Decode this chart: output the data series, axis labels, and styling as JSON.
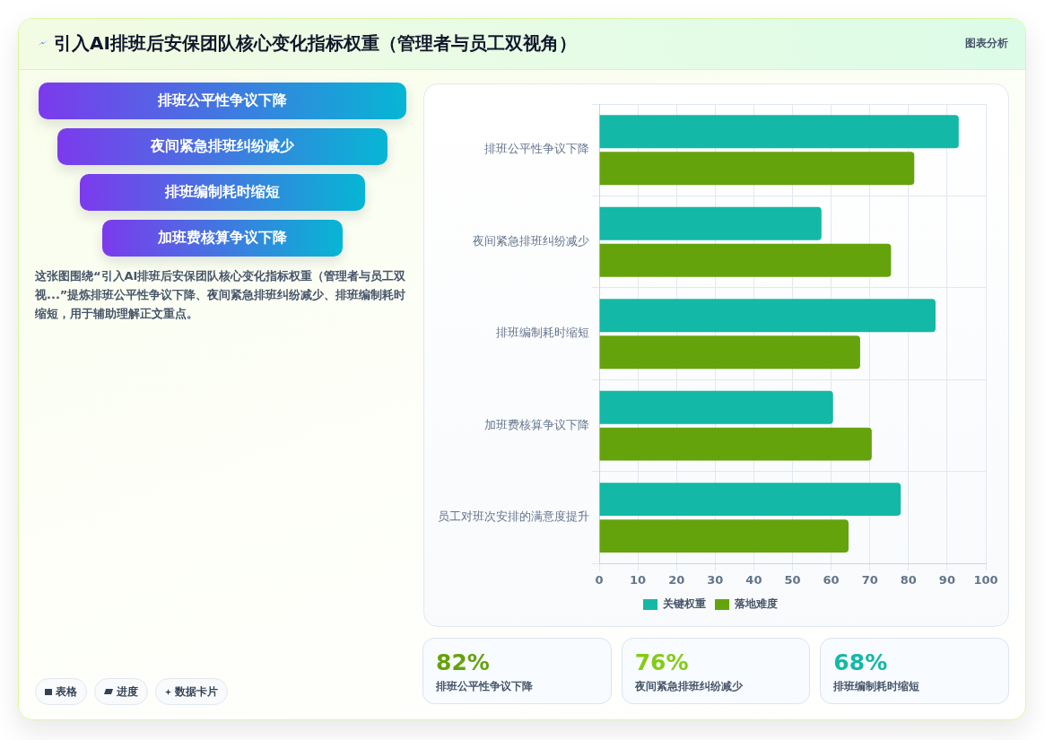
{
  "chart_data": [
    {
      "type": "other",
      "title": "引入AI排班后安保团队核心变化指标权重（管理者与员工双视角）",
      "categories": [
        "排班公平性争议下降",
        "夜间紧急排班纠纷减少",
        "排班编制耗时缩短",
        "加班费核算争议下降"
      ],
      "annotations": [
        "图表分析",
        "这张图围绕“引入AI排班后安保团队核心变化指标权重（管理者与员工双视...”提炼排班公平性争议下降、夜间紧急排班纠纷减少、排班编制耗时缩短，用于辅助理解正文重点。",
        "表格",
        "进度",
        "数据卡片"
      ]
    },
    {
      "type": "bar",
      "orientation": "horizontal",
      "categories": [
        "排班公平性争议下降",
        "夜间紧急排班纠纷减少",
        "排班编制耗时缩短",
        "加班费核算争议下降",
        "员工对班次安排的满意度提升"
      ],
      "series": [
        {
          "name": "关键权重",
          "color": "#14b8a6",
          "values": [
            93,
            57.5,
            87,
            60.5,
            78
          ]
        },
        {
          "name": "落地难度",
          "color": "#65a30d",
          "values": [
            81.5,
            75.5,
            67.5,
            70.5,
            64.5
          ]
        }
      ],
      "xlim": [
        0,
        100
      ],
      "xticks": [
        0,
        10,
        20,
        30,
        40,
        50,
        60,
        70,
        80,
        90,
        100
      ],
      "grid": true,
      "legend": "bottom"
    },
    {
      "type": "other",
      "annotations": [
        "82%",
        "排班公平性争议下降",
        "76%",
        "夜间紧急排班纠纷减少",
        "68%",
        "排班编制耗时缩短"
      ]
    }
  ]
}
